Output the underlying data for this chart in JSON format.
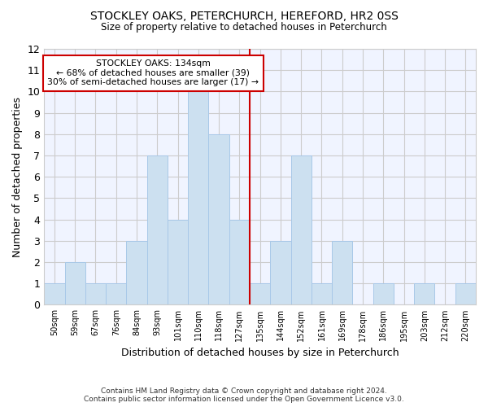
{
  "title_line1": "STOCKLEY OAKS, PETERCHURCH, HEREFORD, HR2 0SS",
  "title_line2": "Size of property relative to detached houses in Peterchurch",
  "xlabel": "Distribution of detached houses by size in Peterchurch",
  "ylabel": "Number of detached properties",
  "categories": [
    "50sqm",
    "59sqm",
    "67sqm",
    "76sqm",
    "84sqm",
    "93sqm",
    "101sqm",
    "110sqm",
    "118sqm",
    "127sqm",
    "135sqm",
    "144sqm",
    "152sqm",
    "161sqm",
    "169sqm",
    "178sqm",
    "186sqm",
    "195sqm",
    "203sqm",
    "212sqm",
    "220sqm"
  ],
  "values": [
    1,
    2,
    1,
    1,
    3,
    7,
    4,
    10,
    8,
    4,
    1,
    3,
    7,
    1,
    3,
    0,
    1,
    0,
    1,
    0,
    1
  ],
  "bar_color": "#cce0f0",
  "bar_edgecolor": "#a8c8e8",
  "marker_color": "#cc0000",
  "annotation_title": "STOCKLEY OAKS: 134sqm",
  "annotation_line1": "← 68% of detached houses are smaller (39)",
  "annotation_line2": "30% of semi-detached houses are larger (17) →",
  "annotation_box_facecolor": "#ffffff",
  "annotation_box_edgecolor": "#cc0000",
  "ylim": [
    0,
    12
  ],
  "yticks": [
    0,
    1,
    2,
    3,
    4,
    5,
    6,
    7,
    8,
    9,
    10,
    11,
    12
  ],
  "grid_color": "#cccccc",
  "bg_color": "#f0f4ff",
  "footer1": "Contains HM Land Registry data © Crown copyright and database right 2024.",
  "footer2": "Contains public sector information licensed under the Open Government Licence v3.0."
}
